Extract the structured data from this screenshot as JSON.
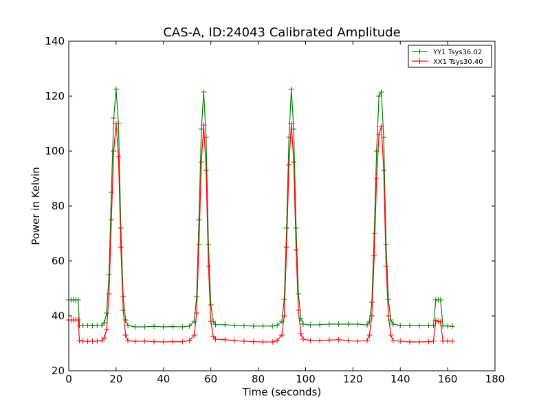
{
  "chart_data": {
    "type": "line",
    "title": "CAS-A, ID:24043 Calibrated Amplitude",
    "xlabel": "Time (seconds)",
    "ylabel": "Power in Kelvin",
    "xlim": [
      0,
      180
    ],
    "ylim": [
      20,
      140
    ],
    "xticks": [
      "0",
      "20",
      "40",
      "60",
      "80",
      "100",
      "120",
      "140",
      "160",
      "180"
    ],
    "yticks": [
      "20",
      "40",
      "60",
      "80",
      "100",
      "120",
      "140"
    ],
    "grid": false,
    "legend_position": "top-right",
    "series": [
      {
        "name": "YY1 Tsys36.02",
        "color": "#008000",
        "points": [
          [
            0,
            45.8
          ],
          [
            1,
            45.8
          ],
          [
            2,
            45.8
          ],
          [
            3,
            45.8
          ],
          [
            4,
            45.8
          ],
          [
            4.5,
            36.5
          ],
          [
            6,
            36.5
          ],
          [
            8,
            36.5
          ],
          [
            10,
            36.4
          ],
          [
            12,
            36.5
          ],
          [
            14,
            36.5
          ],
          [
            15,
            37.5
          ],
          [
            16,
            41
          ],
          [
            17,
            55
          ],
          [
            18,
            85
          ],
          [
            19,
            112
          ],
          [
            20,
            122.5
          ],
          [
            21,
            110
          ],
          [
            22,
            72
          ],
          [
            23,
            47
          ],
          [
            24,
            38.5
          ],
          [
            25,
            36.5
          ],
          [
            28,
            36
          ],
          [
            32,
            36
          ],
          [
            36,
            36.2
          ],
          [
            40,
            36
          ],
          [
            44,
            36.1
          ],
          [
            48,
            36
          ],
          [
            51,
            36.3
          ],
          [
            53,
            38
          ],
          [
            54,
            47
          ],
          [
            55,
            75
          ],
          [
            56,
            108
          ],
          [
            57,
            121.5
          ],
          [
            58,
            105
          ],
          [
            59,
            66
          ],
          [
            60,
            44
          ],
          [
            61,
            38
          ],
          [
            62,
            36.8
          ],
          [
            66,
            36.8
          ],
          [
            70,
            36.5
          ],
          [
            74,
            36.4
          ],
          [
            78,
            36.3
          ],
          [
            82,
            36.3
          ],
          [
            86,
            36.3
          ],
          [
            88,
            36.6
          ],
          [
            90,
            38
          ],
          [
            91,
            46
          ],
          [
            92,
            72
          ],
          [
            93,
            105
          ],
          [
            94,
            122.5
          ],
          [
            95,
            108
          ],
          [
            96,
            72
          ],
          [
            97,
            48
          ],
          [
            98,
            39
          ],
          [
            99,
            37
          ],
          [
            102,
            36.7
          ],
          [
            106,
            36.8
          ],
          [
            110,
            37
          ],
          [
            114,
            37
          ],
          [
            118,
            37
          ],
          [
            122,
            37
          ],
          [
            126,
            36.7
          ],
          [
            127,
            38
          ],
          [
            128,
            45
          ],
          [
            129,
            70
          ],
          [
            130,
            100
          ],
          [
            131,
            120
          ],
          [
            132,
            121.5
          ],
          [
            133,
            105
          ],
          [
            134,
            66
          ],
          [
            135,
            46
          ],
          [
            136,
            38.5
          ],
          [
            137,
            37
          ],
          [
            140,
            36.5
          ],
          [
            144,
            36.5
          ],
          [
            148,
            36.4
          ],
          [
            152,
            36.5
          ],
          [
            154,
            36.5
          ],
          [
            155,
            45.8
          ],
          [
            156,
            45.8
          ],
          [
            157,
            45.8
          ],
          [
            158,
            36.3
          ],
          [
            160,
            36.3
          ],
          [
            162,
            36.2
          ]
        ]
      },
      {
        "name": "XX1 Tsys30.40",
        "color": "#ff0000",
        "points": [
          [
            0,
            38.5
          ],
          [
            1,
            38.5
          ],
          [
            2,
            38.5
          ],
          [
            3,
            38.5
          ],
          [
            4,
            38.5
          ],
          [
            4.5,
            31
          ],
          [
            6,
            30.8
          ],
          [
            8,
            30.7
          ],
          [
            10,
            30.8
          ],
          [
            12,
            30.8
          ],
          [
            14,
            31
          ],
          [
            15,
            32
          ],
          [
            16,
            35
          ],
          [
            17,
            48
          ],
          [
            18,
            75
          ],
          [
            19,
            100
          ],
          [
            20,
            110
          ],
          [
            21,
            98
          ],
          [
            22,
            65
          ],
          [
            23,
            42
          ],
          [
            24,
            33
          ],
          [
            25,
            31
          ],
          [
            28,
            30.7
          ],
          [
            32,
            30.8
          ],
          [
            36,
            30.6
          ],
          [
            40,
            30.5
          ],
          [
            44,
            30.6
          ],
          [
            48,
            30.6
          ],
          [
            51,
            31
          ],
          [
            53,
            33
          ],
          [
            54,
            41
          ],
          [
            55,
            66
          ],
          [
            56,
            96
          ],
          [
            57,
            109.5
          ],
          [
            58,
            93
          ],
          [
            59,
            58
          ],
          [
            60,
            38
          ],
          [
            61,
            32.5
          ],
          [
            62,
            31.5
          ],
          [
            66,
            31.3
          ],
          [
            70,
            31
          ],
          [
            74,
            30.8
          ],
          [
            78,
            30.6
          ],
          [
            82,
            30.5
          ],
          [
            86,
            30.5
          ],
          [
            88,
            31
          ],
          [
            90,
            33
          ],
          [
            91,
            40
          ],
          [
            92,
            65
          ],
          [
            93,
            95
          ],
          [
            94,
            110
          ],
          [
            95,
            96
          ],
          [
            96,
            64
          ],
          [
            97,
            42
          ],
          [
            98,
            33.5
          ],
          [
            99,
            31.5
          ],
          [
            102,
            31
          ],
          [
            106,
            31
          ],
          [
            110,
            31.2
          ],
          [
            114,
            31.3
          ],
          [
            118,
            31
          ],
          [
            122,
            30.8
          ],
          [
            126,
            31
          ],
          [
            127,
            33
          ],
          [
            128,
            40
          ],
          [
            129,
            62
          ],
          [
            130,
            90
          ],
          [
            131,
            106
          ],
          [
            132,
            109
          ],
          [
            133,
            93
          ],
          [
            134,
            58
          ],
          [
            135,
            40
          ],
          [
            136,
            33
          ],
          [
            137,
            31
          ],
          [
            140,
            30.8
          ],
          [
            144,
            30.5
          ],
          [
            148,
            30.5
          ],
          [
            152,
            30.6
          ],
          [
            154,
            30.8
          ],
          [
            155,
            38.3
          ],
          [
            156,
            38
          ],
          [
            157,
            37.8
          ],
          [
            158,
            30.8
          ],
          [
            160,
            30.8
          ],
          [
            162,
            30.8
          ]
        ]
      }
    ]
  }
}
